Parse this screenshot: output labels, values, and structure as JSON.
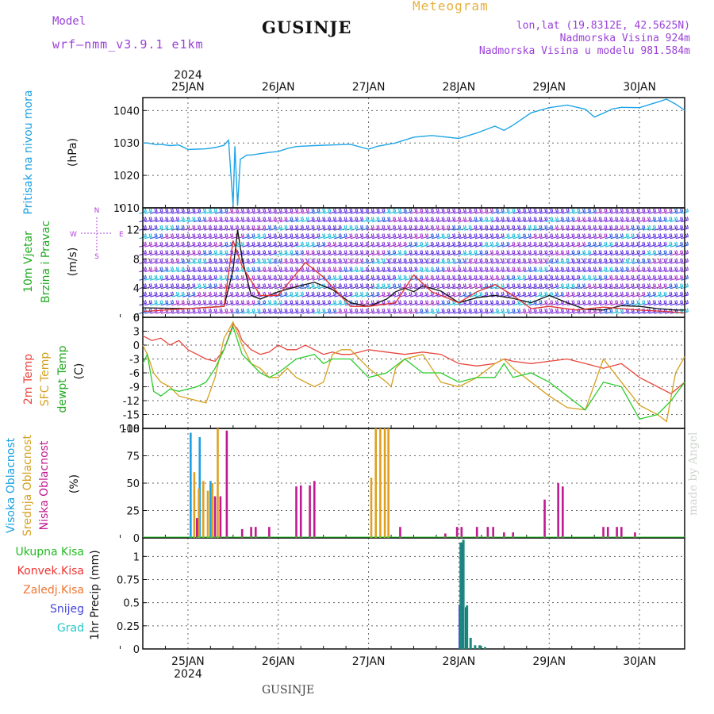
{
  "header": {
    "title": "GUSINJE",
    "meteogram_label": "Meteogram",
    "model_label": "Model",
    "model_name": "wrf–nmm_v3.9.1  e1km",
    "lonlat": "lon,lat (19.8312E, 42.5625N)",
    "elevation": "Nadmorska Visina 924m",
    "model_elevation": "Nadmorska Visina u modelu 981.584m",
    "signature": "made by Angel",
    "footer_location": "GUSINJE",
    "year_top": "2024",
    "year_bottom": "2024"
  },
  "chart_data": [
    {
      "type": "line",
      "panel": "pressure",
      "ylabel_left": "Pritisak na nivou mora",
      "ylabel_unit": "(hPa)",
      "yticks": [
        1010,
        1020,
        1030,
        1040
      ],
      "ylim": [
        1010,
        1044
      ],
      "x_days": [
        "25JAN",
        "26JAN",
        "27JAN",
        "28JAN",
        "29JAN",
        "30JAN"
      ],
      "color": "#1fa5e6",
      "series": [
        {
          "x": [
            24.5,
            24.55,
            24.65,
            24.7,
            24.8,
            24.9,
            25.0,
            25.1,
            25.2,
            25.3,
            25.4,
            25.45,
            25.5,
            25.52,
            25.55,
            25.58,
            25.62,
            25.65,
            25.7,
            25.8,
            25.9,
            26.0,
            26.1,
            26.2,
            26.4,
            26.6,
            26.8,
            27.0,
            27.1,
            27.3,
            27.5,
            27.7,
            28.0,
            28.2,
            28.4,
            28.5,
            28.6,
            28.8,
            29.0,
            29.2,
            29.4,
            29.5,
            29.6,
            29.7,
            29.8,
            30.0,
            30.2,
            30.3,
            30.4,
            30.5
          ],
          "y": [
            1030,
            1030,
            1029.5,
            1029.6,
            1029.2,
            1029.4,
            1028,
            1028.1,
            1028.2,
            1028.6,
            1029.3,
            1030.9,
            1010.6,
            1029,
            1010.6,
            1025,
            1025.7,
            1026.3,
            1026.3,
            1026.7,
            1027.1,
            1027.4,
            1028.3,
            1028.9,
            1029.2,
            1029.4,
            1029.6,
            1028.1,
            1029,
            1030,
            1031.8,
            1032.3,
            1031.4,
            1033.1,
            1035.2,
            1033.9,
            1035.5,
            1039.3,
            1040.9,
            1041.7,
            1040.4,
            1038,
            1039.2,
            1040.5,
            1041,
            1040.9,
            1042.6,
            1043.5,
            1042,
            1040.1
          ]
        }
      ]
    },
    {
      "type": "line",
      "panel": "wind",
      "ylabel_left": "10m Vjetar",
      "ylabel_left2": "Brzina i Pravac",
      "ylabel_unit": "(m/s)",
      "yticks": [
        0,
        4,
        8,
        12
      ],
      "ylim": [
        0,
        15
      ],
      "compass": {
        "n": "N",
        "w": "W",
        "e": "E",
        "s": "S"
      },
      "series": [
        {
          "name": "speed",
          "color": "#111111",
          "x": [
            24.5,
            25.0,
            25.4,
            25.5,
            25.55,
            25.6,
            25.7,
            25.8,
            26.0,
            26.2,
            26.4,
            26.6,
            26.8,
            27.0,
            27.2,
            27.3,
            27.4,
            27.5,
            27.6,
            27.8,
            28.0,
            28.2,
            28.4,
            28.6,
            28.8,
            29.0,
            29.2,
            29.4,
            29.6,
            29.8,
            30.0,
            30.2,
            30.4,
            30.5
          ],
          "y": [
            1.3,
            1.2,
            1.5,
            6.5,
            12,
            8,
            3,
            2.5,
            3.5,
            4.2,
            4.8,
            3.8,
            2,
            1.5,
            2.5,
            3.5,
            4,
            3.5,
            4.3,
            3.6,
            2,
            2.7,
            3,
            2.6,
            2,
            3,
            2,
            1.1,
            1,
            1.6,
            1.5,
            1.2,
            1,
            1
          ]
        },
        {
          "name": "gust",
          "color": "#e03030",
          "x": [
            24.5,
            25.0,
            25.4,
            25.5,
            25.6,
            25.8,
            26.0,
            26.3,
            26.5,
            26.8,
            27.0,
            27.3,
            27.5,
            27.7,
            28.0,
            28.2,
            28.4,
            28.6,
            28.8,
            29.0,
            29.3,
            29.6,
            29.8,
            30.0,
            30.3,
            30.5
          ],
          "y": [
            0.8,
            1.2,
            1.5,
            10.5,
            7,
            3,
            3,
            7.5,
            5.5,
            1.5,
            1.5,
            2,
            5.8,
            3.5,
            2,
            3.5,
            4.5,
            3,
            1.2,
            1.5,
            1,
            1.4,
            1.2,
            1,
            0.8,
            0.6
          ]
        }
      ]
    },
    {
      "type": "line",
      "panel": "temperature",
      "ylabel_left": "2m Temp",
      "ylabel_left2": "SFC Temp",
      "ylabel_left3": "dewpt Temp",
      "ylabel_unit": "(C)",
      "yticks": [
        6,
        3,
        0,
        -3,
        -6,
        -9,
        -12,
        -15,
        -18
      ],
      "ylim": [
        -18,
        6
      ],
      "series": [
        {
          "name": "2m Temp",
          "color": "#e8453c",
          "x": [
            24.5,
            24.6,
            24.7,
            24.8,
            24.9,
            25.0,
            25.1,
            25.2,
            25.3,
            25.4,
            25.5,
            25.55,
            25.6,
            25.7,
            25.8,
            25.9,
            26.0,
            26.1,
            26.2,
            26.3,
            26.4,
            26.5,
            26.6,
            26.7,
            26.8,
            27.0,
            27.2,
            27.4,
            27.6,
            27.8,
            28.0,
            28.2,
            28.4,
            28.5,
            28.6,
            28.8,
            29.0,
            29.2,
            29.4,
            29.6,
            29.8,
            30.0,
            30.2,
            30.35,
            30.5
          ],
          "y": [
            2,
            1,
            1.5,
            0,
            1,
            -1,
            -2,
            -3,
            -3.5,
            -1,
            4.5,
            3.5,
            1,
            -1,
            -2,
            -1.5,
            0,
            -1,
            -1,
            0,
            -1,
            -2,
            -1.5,
            -2,
            -2,
            -1,
            -1.5,
            -2,
            -1.5,
            -2,
            -4,
            -4.5,
            -4,
            -3,
            -3.5,
            -4,
            -3.5,
            -3,
            -4,
            -5,
            -4,
            -7,
            -9,
            -10.5,
            -8
          ]
        },
        {
          "name": "SFC Temp",
          "color": "#d4a020",
          "x": [
            24.5,
            24.55,
            24.62,
            24.7,
            24.8,
            24.9,
            25.0,
            25.1,
            25.2,
            25.3,
            25.4,
            25.5,
            25.6,
            25.7,
            25.8,
            25.9,
            26.0,
            26.1,
            26.2,
            26.4,
            26.5,
            26.6,
            26.7,
            26.8,
            27.0,
            27.2,
            27.25,
            27.3,
            27.4,
            27.6,
            27.8,
            28.0,
            28.2,
            28.4,
            28.5,
            28.6,
            28.8,
            29.0,
            29.2,
            29.4,
            29.6,
            29.8,
            30.0,
            30.2,
            30.3,
            30.4,
            30.5
          ],
          "y": [
            0,
            -2,
            -6,
            -8,
            -9,
            -11,
            -11.5,
            -12,
            -12.5,
            -7,
            1.5,
            5,
            0,
            -4,
            -5,
            -7,
            -7,
            -5,
            -7,
            -9,
            -8,
            -2,
            -1,
            -1,
            -5,
            -8,
            -9,
            -5,
            -3,
            -2,
            -8,
            -9,
            -7,
            -4,
            -3,
            -5,
            -8,
            -11,
            -13.5,
            -14,
            -3,
            -8,
            -13,
            -15,
            -16.5,
            -6,
            -2.5
          ]
        },
        {
          "name": "dewpt Temp",
          "color": "#2ccc2c",
          "x": [
            24.5,
            24.55,
            24.62,
            24.7,
            24.8,
            24.9,
            25.0,
            25.1,
            25.2,
            25.3,
            25.4,
            25.5,
            25.6,
            25.7,
            25.8,
            25.9,
            26.0,
            26.2,
            26.4,
            26.5,
            26.6,
            26.8,
            27.0,
            27.2,
            27.4,
            27.6,
            27.8,
            28.0,
            28.2,
            28.4,
            28.5,
            28.6,
            28.8,
            29.0,
            29.2,
            29.4,
            29.6,
            29.8,
            30.0,
            30.2,
            30.35,
            30.5
          ],
          "y": [
            -4,
            -2,
            -10,
            -11,
            -9.5,
            -10,
            -9.5,
            -9,
            -8,
            -5,
            -1,
            4,
            -2,
            -4,
            -6,
            -7,
            -6,
            -3,
            -2,
            -4,
            -3,
            -3,
            -7,
            -6,
            -3,
            -6,
            -6,
            -8,
            -7,
            -7,
            -4,
            -7,
            -6,
            -8,
            -11,
            -14,
            -8,
            -9,
            -16,
            -15,
            -12,
            -8
          ]
        }
      ]
    },
    {
      "type": "bar",
      "panel": "cloud",
      "ylabel_left": "Visoka Oblacnost",
      "ylabel_left2": "Srednja Oblacnost",
      "ylabel_left3": "Niska Oblacnost",
      "ylabel_unit": "(%)",
      "yticks": [
        0,
        25,
        50,
        75,
        100
      ],
      "ylim": [
        0,
        100
      ],
      "series": [
        {
          "name": "Visoka Oblacnost",
          "color": "#1ba0e0",
          "x": [
            25.03,
            25.13,
            25.25
          ],
          "y": [
            96,
            92,
            52
          ]
        },
        {
          "name": "Srednja Oblacnost",
          "color": "#e0a020",
          "x": [
            25.07,
            25.12,
            25.17,
            25.22,
            25.27,
            25.33,
            27.03,
            27.08,
            27.13,
            27.18,
            27.22
          ],
          "y": [
            60,
            45,
            52,
            43,
            50,
            100,
            55,
            100,
            100,
            100,
            100
          ]
        },
        {
          "name": "Niska Oblacnost",
          "color": "#c01a90",
          "x": [
            25.1,
            25.3,
            25.36,
            25.43,
            25.6,
            25.7,
            25.75,
            25.9,
            26.2,
            26.25,
            26.35,
            26.4,
            27.35,
            27.85,
            27.98,
            28.03,
            28.2,
            28.32,
            28.38,
            28.5,
            28.6,
            28.95,
            29.1,
            29.15,
            29.6,
            29.65,
            29.75,
            29.8,
            29.95
          ],
          "y": [
            18,
            38,
            38,
            98,
            8,
            10,
            10,
            10,
            47,
            48,
            48,
            52,
            10,
            4,
            10,
            10,
            10,
            10,
            10,
            5,
            5,
            35,
            50,
            47,
            10,
            10,
            10,
            10,
            5
          ]
        }
      ]
    },
    {
      "type": "bar",
      "panel": "precipitation",
      "ylabel_unit": "1hr Precip (mm)",
      "yticks": [
        0,
        0.25,
        0.5,
        0.75,
        1
      ],
      "ylim": [
        0,
        1.2
      ],
      "legend": [
        "Ukupna Kisa",
        "Konvek.Kisa",
        "Zaledj.Kisa",
        "Snijeg",
        "Grad"
      ],
      "legend_colors": [
        "#22bb22",
        "#ee3333",
        "#ee7733",
        "#4444dd",
        "#22c8c8"
      ],
      "series": [
        {
          "name": "Snijeg",
          "color": "#3a4fd0",
          "x": [
            28.01,
            28.04,
            28.08
          ],
          "y": [
            0.47,
            1.15,
            0.45
          ]
        },
        {
          "name": "Ukupna Kisa",
          "color": "#1a8a7a",
          "x": [
            28.02,
            28.05,
            28.09,
            28.13,
            28.18,
            28.23,
            28.29
          ],
          "y": [
            1.15,
            1.18,
            0.47,
            0.12,
            0.04,
            0.04,
            0.02
          ]
        }
      ]
    }
  ]
}
